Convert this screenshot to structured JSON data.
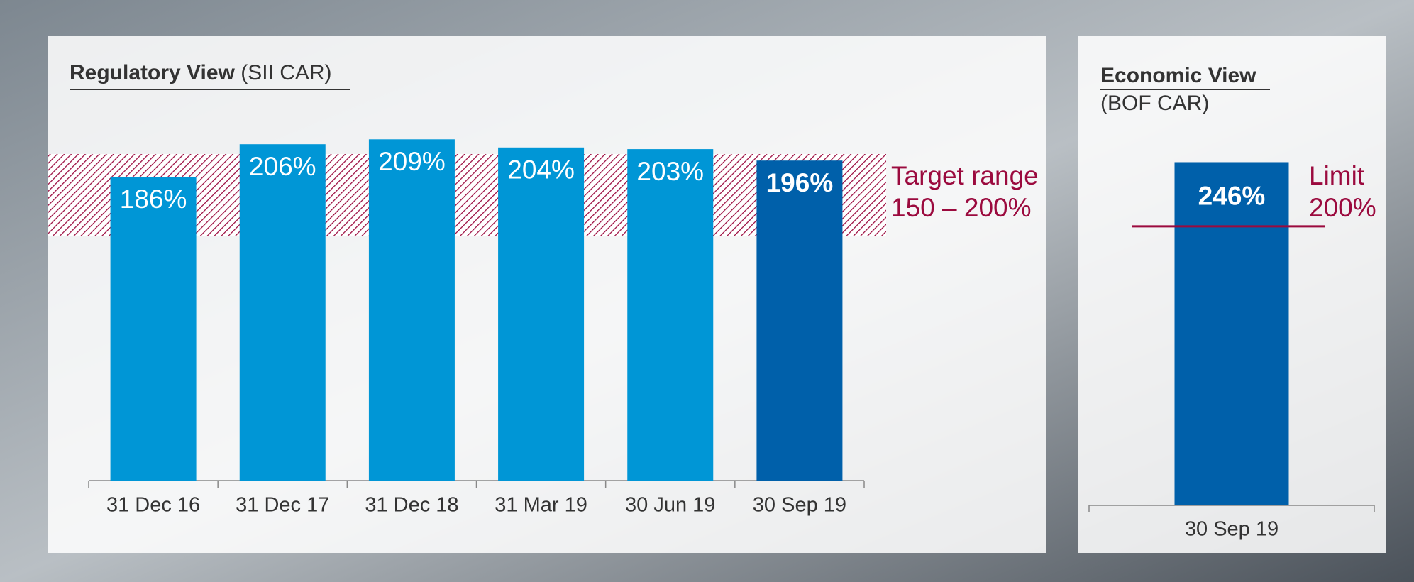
{
  "chart_data": [
    {
      "type": "bar",
      "title": "Regulatory View",
      "subtitle": "(SII CAR)",
      "categories": [
        "31 Dec 16",
        "31 Dec 17",
        "31 Dec 18",
        "31 Mar 19",
        "30 Jun 19",
        "30 Sep 19"
      ],
      "values": [
        186,
        206,
        209,
        204,
        203,
        196
      ],
      "value_labels": [
        "186%",
        "206%",
        "209%",
        "204%",
        "203%",
        "196%"
      ],
      "colors": [
        "#0096d6",
        "#0096d6",
        "#0096d6",
        "#0096d6",
        "#0096d6",
        "#0060aa"
      ],
      "ylim": [
        0,
        220
      ],
      "target_range": [
        150,
        200
      ],
      "target_color": "#9b0a3e",
      "annotation": [
        "Target range",
        "150 – 200%"
      ]
    },
    {
      "type": "bar",
      "title": "Economic View",
      "subtitle": "(BOF CAR)",
      "categories": [
        "30 Sep 19"
      ],
      "values": [
        246
      ],
      "value_labels": [
        "246%"
      ],
      "colors": [
        "#0060aa"
      ],
      "ylim": [
        0,
        290
      ],
      "limit": 200,
      "limit_color": "#9b0a3e",
      "annotation": [
        "Limit",
        "200%"
      ]
    }
  ]
}
